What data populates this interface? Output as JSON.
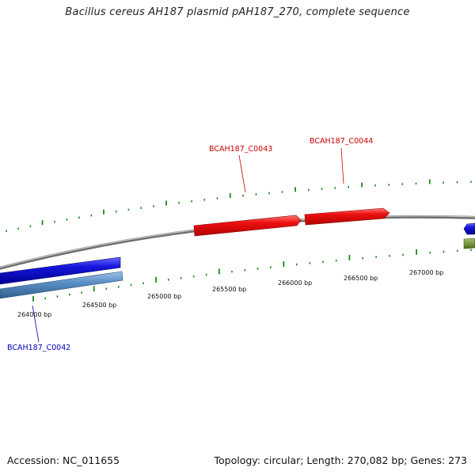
{
  "title": "Bacillus cereus AH187 plasmid pAH187_270, complete sequence",
  "footer": {
    "accession": "Accession: NC_011655",
    "summary": "Topology: circular; Length: 270,082 bp; Genes: 273"
  },
  "colors": {
    "forward_gene": "#ee1111",
    "reverse_gene": "#1515dd",
    "reverse_cds_light": "#5b8fc7",
    "forward_cds_olive": "#6b8e23",
    "backbone": "#8a8a8a",
    "ticks": "#1a8a1a",
    "forward_label": "#cc0000",
    "reverse_label": "#0000bb"
  },
  "scale_labels": [
    "264000 bp",
    "264500 bp",
    "265000 bp",
    "265500 bp",
    "266000 bp",
    "266500 bp",
    "267000 bp"
  ],
  "genes": [
    {
      "label": "BCAH187_C0042",
      "strand": "reverse"
    },
    {
      "label": "BCAH187_C0043",
      "strand": "forward"
    },
    {
      "label": "BCAH187_C0044",
      "strand": "forward"
    }
  ]
}
